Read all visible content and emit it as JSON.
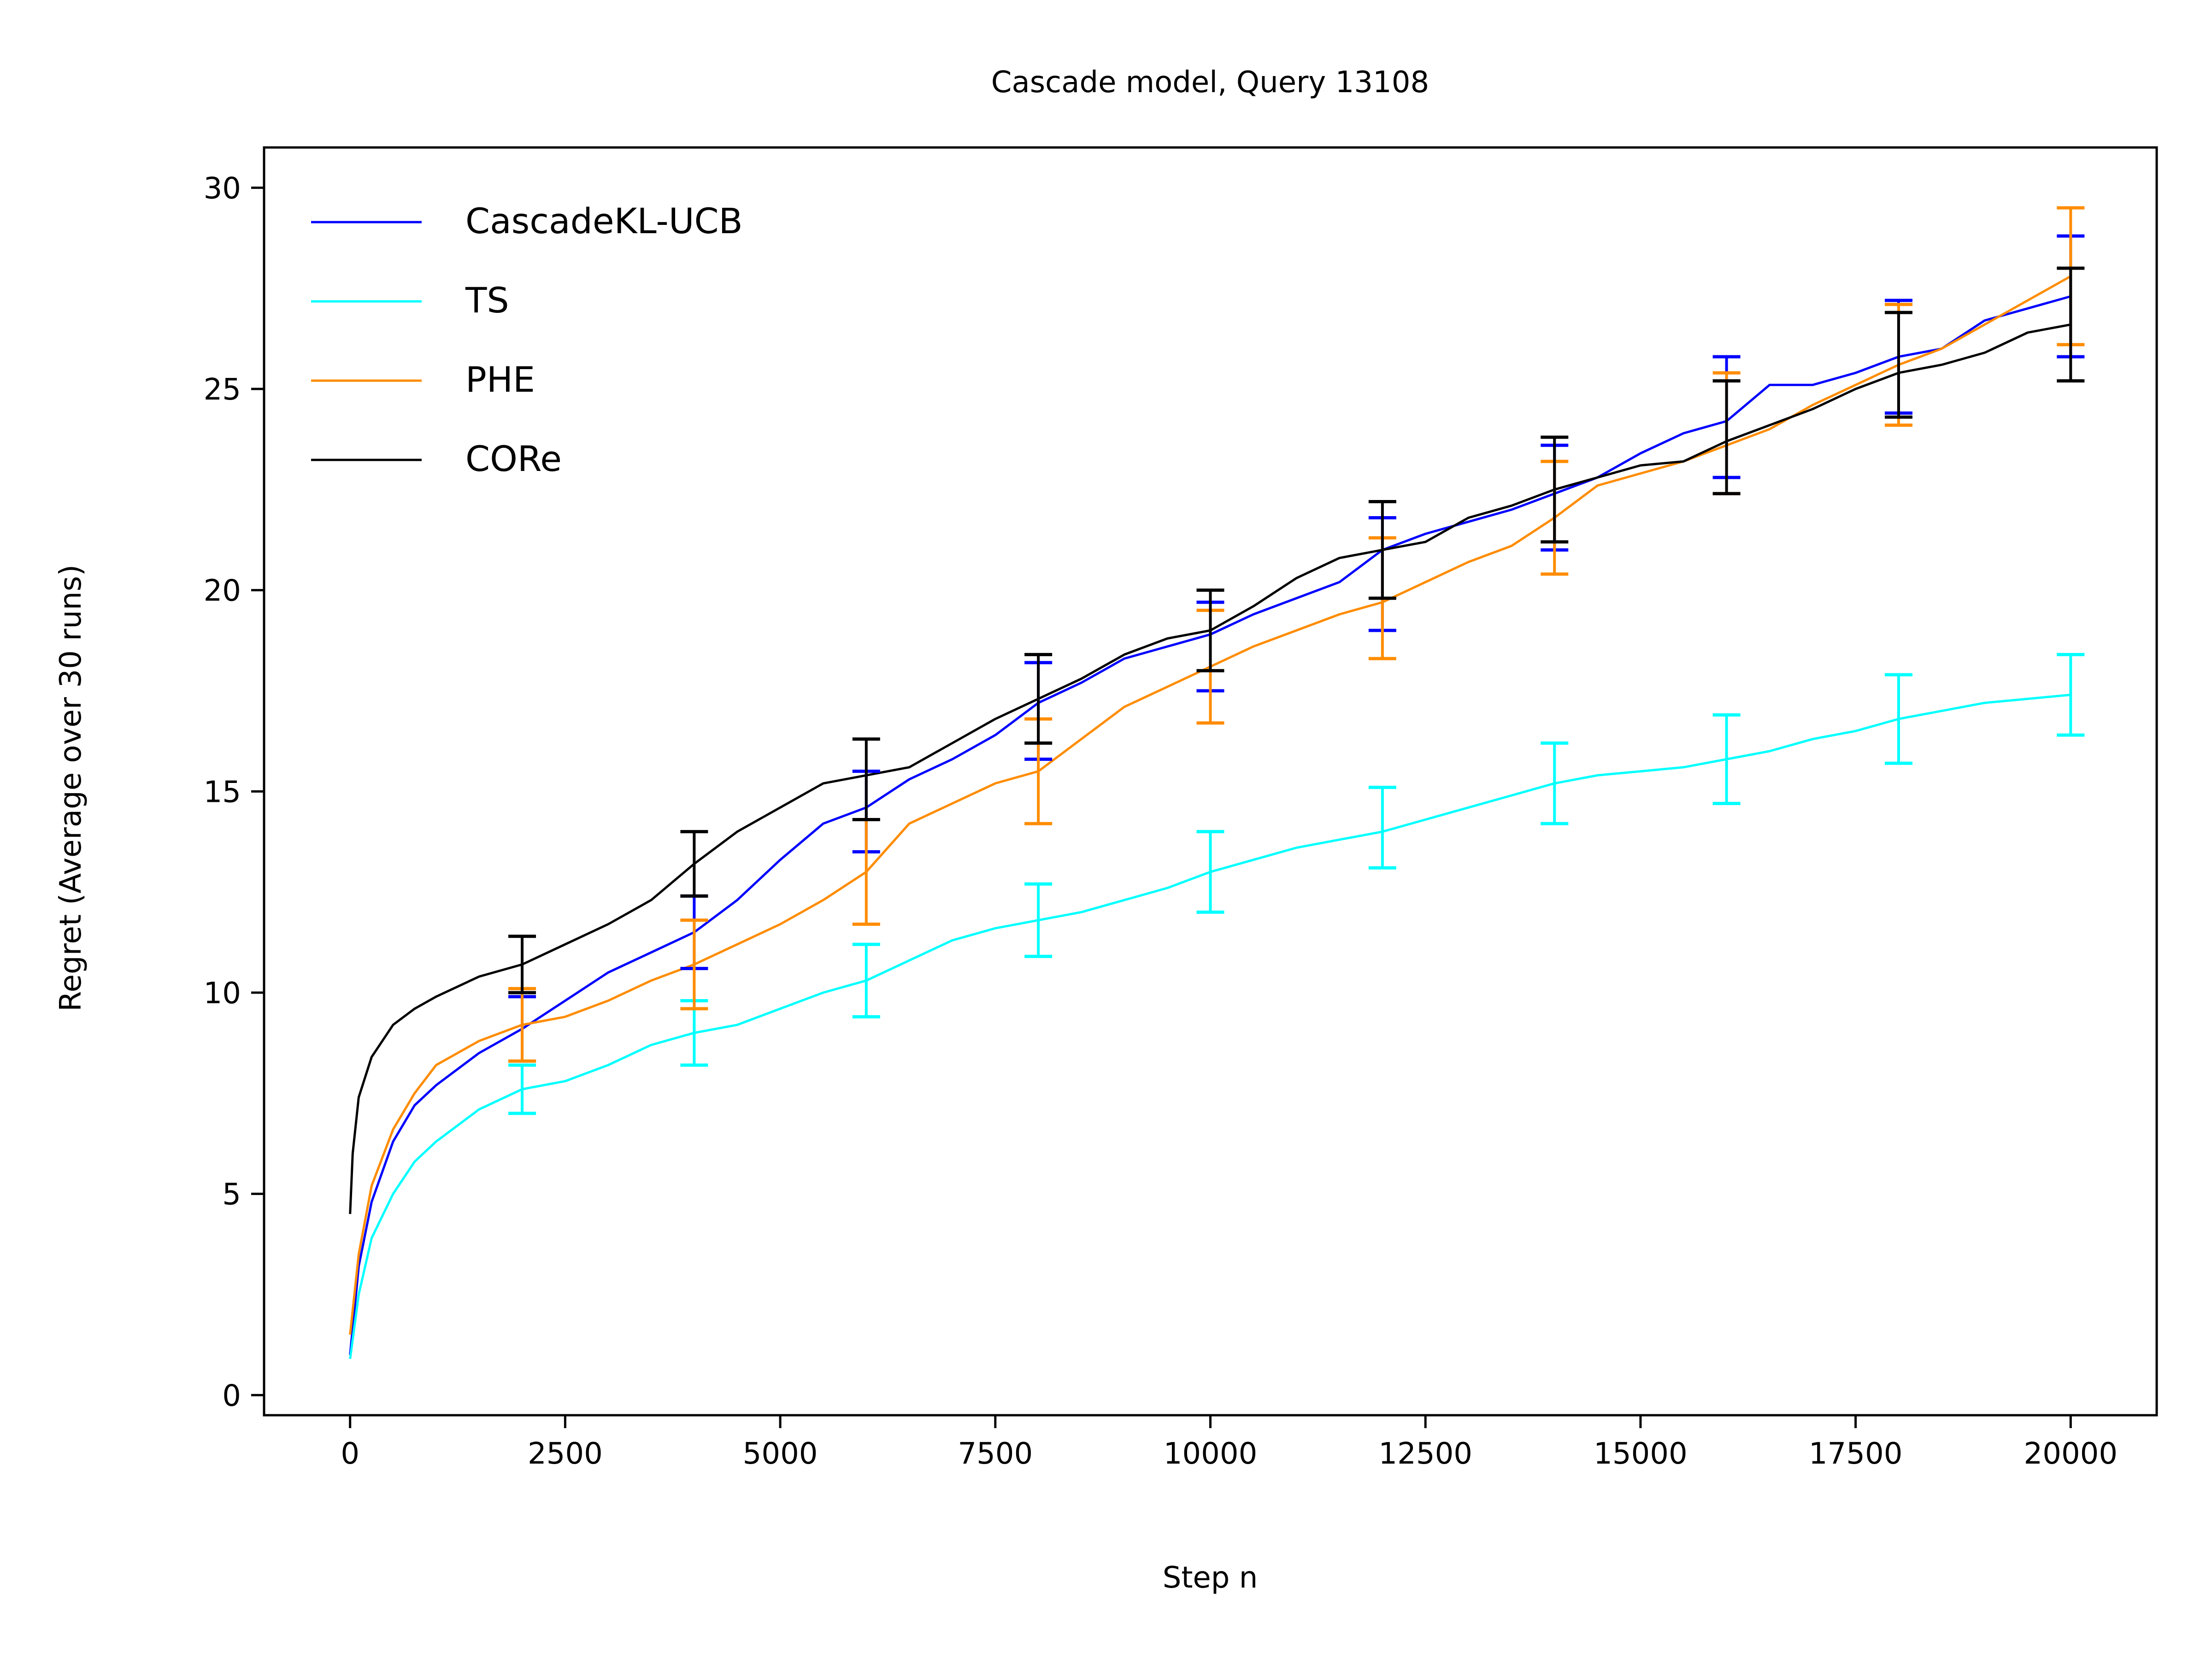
{
  "chart_data": {
    "type": "line",
    "title": "Cascade model, Query 13108",
    "xlabel": "Step n",
    "ylabel": "Regret (Average over 30 runs)",
    "xlim": [
      -1000,
      21000
    ],
    "ylim": [
      -0.5,
      31
    ],
    "xticks": [
      0,
      2500,
      5000,
      7500,
      10000,
      12500,
      15000,
      17500,
      20000
    ],
    "xtick_labels": [
      "0",
      "2500",
      "5000",
      "7500",
      "10000",
      "12500",
      "15000",
      "17500",
      "20000"
    ],
    "yticks": [
      0,
      5,
      10,
      15,
      20,
      25,
      30
    ],
    "ytick_labels": [
      "0",
      "5",
      "10",
      "15",
      "20",
      "25",
      "30"
    ],
    "grid": false,
    "legend_position": "top-left",
    "series": [
      {
        "name": "CascadeKL-UCB",
        "color": "#0000ff",
        "x": [
          0,
          100,
          250,
          500,
          750,
          1000,
          1500,
          2000,
          2500,
          3000,
          3500,
          4000,
          4500,
          5000,
          5500,
          6000,
          6500,
          7000,
          7500,
          8000,
          8500,
          9000,
          9500,
          10000,
          10500,
          11000,
          11500,
          12000,
          12500,
          13000,
          13500,
          14000,
          14500,
          15000,
          15500,
          16000,
          16500,
          17000,
          17500,
          18000,
          18500,
          19000,
          19500,
          20000
        ],
        "y": [
          1.0,
          3.2,
          4.8,
          6.3,
          7.2,
          7.7,
          8.5,
          9.1,
          9.8,
          10.5,
          11.0,
          11.5,
          12.3,
          13.3,
          14.2,
          14.6,
          15.3,
          15.8,
          16.4,
          17.2,
          17.7,
          18.3,
          18.6,
          18.9,
          19.4,
          19.8,
          20.2,
          21.0,
          21.4,
          21.7,
          22.0,
          22.4,
          22.8,
          23.4,
          23.9,
          24.2,
          25.1,
          25.1,
          25.4,
          25.8,
          26.0,
          26.7,
          27.0,
          27.3
        ],
        "errorbars": [
          {
            "x": 2000,
            "y": 9.1,
            "err": 0.8
          },
          {
            "x": 4000,
            "y": 11.5,
            "err": 0.9
          },
          {
            "x": 6000,
            "y": 14.5,
            "err": 1.0
          },
          {
            "x": 8000,
            "y": 17.0,
            "err": 1.2
          },
          {
            "x": 10000,
            "y": 18.6,
            "err": 1.1
          },
          {
            "x": 12000,
            "y": 20.4,
            "err": 1.4
          },
          {
            "x": 14000,
            "y": 22.3,
            "err": 1.3
          },
          {
            "x": 16000,
            "y": 24.3,
            "err": 1.5
          },
          {
            "x": 18000,
            "y": 25.8,
            "err": 1.4
          },
          {
            "x": 20000,
            "y": 27.3,
            "err": 1.5
          }
        ]
      },
      {
        "name": "TS",
        "color": "#00ffff",
        "x": [
          0,
          100,
          250,
          500,
          750,
          1000,
          1500,
          2000,
          2500,
          3000,
          3500,
          4000,
          4500,
          5000,
          5500,
          6000,
          6500,
          7000,
          7500,
          8000,
          8500,
          9000,
          9500,
          10000,
          10500,
          11000,
          11500,
          12000,
          12500,
          13000,
          13500,
          14000,
          14500,
          15000,
          15500,
          16000,
          16500,
          17000,
          17500,
          18000,
          18500,
          19000,
          19500,
          20000
        ],
        "y": [
          0.9,
          2.5,
          3.9,
          5.0,
          5.8,
          6.3,
          7.1,
          7.6,
          7.8,
          8.2,
          8.7,
          9.0,
          9.2,
          9.6,
          10.0,
          10.3,
          10.8,
          11.3,
          11.6,
          11.8,
          12.0,
          12.3,
          12.6,
          13.0,
          13.3,
          13.6,
          13.8,
          14.0,
          14.3,
          14.6,
          14.9,
          15.2,
          15.4,
          15.5,
          15.6,
          15.8,
          16.0,
          16.3,
          16.5,
          16.8,
          17.0,
          17.2,
          17.3,
          17.4
        ],
        "errorbars": [
          {
            "x": 2000,
            "y": 7.6,
            "err": 0.6
          },
          {
            "x": 4000,
            "y": 9.0,
            "err": 0.8
          },
          {
            "x": 6000,
            "y": 10.3,
            "err": 0.9
          },
          {
            "x": 8000,
            "y": 11.8,
            "err": 0.9
          },
          {
            "x": 10000,
            "y": 13.0,
            "err": 1.0
          },
          {
            "x": 12000,
            "y": 14.1,
            "err": 1.0
          },
          {
            "x": 14000,
            "y": 15.2,
            "err": 1.0
          },
          {
            "x": 16000,
            "y": 15.8,
            "err": 1.1
          },
          {
            "x": 18000,
            "y": 16.8,
            "err": 1.1
          },
          {
            "x": 20000,
            "y": 17.4,
            "err": 1.0
          }
        ]
      },
      {
        "name": "PHE",
        "color": "#ff8c00",
        "x": [
          0,
          100,
          250,
          500,
          750,
          1000,
          1500,
          2000,
          2500,
          3000,
          3500,
          4000,
          4500,
          5000,
          5500,
          6000,
          6500,
          7000,
          7500,
          8000,
          8500,
          9000,
          9500,
          10000,
          10500,
          11000,
          11500,
          12000,
          12500,
          13000,
          13500,
          14000,
          14500,
          15000,
          15500,
          16000,
          16500,
          17000,
          17500,
          18000,
          18500,
          19000,
          19500,
          20000
        ],
        "y": [
          1.5,
          3.5,
          5.2,
          6.6,
          7.5,
          8.2,
          8.8,
          9.2,
          9.4,
          9.8,
          10.3,
          10.7,
          11.2,
          11.7,
          12.3,
          13.0,
          14.2,
          14.7,
          15.2,
          15.5,
          16.3,
          17.1,
          17.6,
          18.1,
          18.6,
          19.0,
          19.4,
          19.7,
          20.2,
          20.7,
          21.1,
          21.8,
          22.6,
          22.9,
          23.2,
          23.6,
          24.0,
          24.6,
          25.1,
          25.6,
          26.0,
          26.6,
          27.2,
          27.8
        ],
        "errorbars": [
          {
            "x": 2000,
            "y": 9.2,
            "err": 0.9
          },
          {
            "x": 4000,
            "y": 10.7,
            "err": 1.1
          },
          {
            "x": 6000,
            "y": 13.0,
            "err": 1.3
          },
          {
            "x": 8000,
            "y": 15.5,
            "err": 1.3
          },
          {
            "x": 10000,
            "y": 18.1,
            "err": 1.4
          },
          {
            "x": 12000,
            "y": 19.8,
            "err": 1.5
          },
          {
            "x": 14000,
            "y": 21.8,
            "err": 1.4
          },
          {
            "x": 16000,
            "y": 23.9,
            "err": 1.5
          },
          {
            "x": 18000,
            "y": 25.6,
            "err": 1.5
          },
          {
            "x": 20000,
            "y": 27.8,
            "err": 1.7
          }
        ]
      },
      {
        "name": "CORe",
        "color": "#000000",
        "x": [
          0,
          30,
          100,
          250,
          500,
          750,
          1000,
          1500,
          2000,
          2500,
          3000,
          3500,
          4000,
          4500,
          5000,
          5500,
          6000,
          6500,
          7000,
          7500,
          8000,
          8500,
          9000,
          9500,
          10000,
          10500,
          11000,
          11500,
          12000,
          12500,
          13000,
          13500,
          14000,
          14500,
          15000,
          15500,
          16000,
          16500,
          17000,
          17500,
          18000,
          18500,
          19000,
          19500,
          20000
        ],
        "y": [
          4.5,
          6.0,
          7.4,
          8.4,
          9.2,
          9.6,
          9.9,
          10.4,
          10.7,
          11.2,
          11.7,
          12.3,
          13.2,
          14.0,
          14.6,
          15.2,
          15.4,
          15.6,
          16.2,
          16.8,
          17.3,
          17.8,
          18.4,
          18.8,
          19.0,
          19.6,
          20.3,
          20.8,
          21.0,
          21.2,
          21.8,
          22.1,
          22.5,
          22.8,
          23.1,
          23.2,
          23.7,
          24.1,
          24.5,
          25.0,
          25.4,
          25.6,
          25.9,
          26.4,
          26.6
        ],
        "errorbars": [
          {
            "x": 2000,
            "y": 10.7,
            "err": 0.7
          },
          {
            "x": 4000,
            "y": 13.2,
            "err": 0.8
          },
          {
            "x": 6000,
            "y": 15.3,
            "err": 1.0
          },
          {
            "x": 8000,
            "y": 17.3,
            "err": 1.1
          },
          {
            "x": 10000,
            "y": 19.0,
            "err": 1.0
          },
          {
            "x": 12000,
            "y": 21.0,
            "err": 1.2
          },
          {
            "x": 14000,
            "y": 22.5,
            "err": 1.3
          },
          {
            "x": 16000,
            "y": 23.8,
            "err": 1.4
          },
          {
            "x": 18000,
            "y": 25.6,
            "err": 1.3
          },
          {
            "x": 20000,
            "y": 26.6,
            "err": 1.4
          }
        ]
      }
    ]
  }
}
